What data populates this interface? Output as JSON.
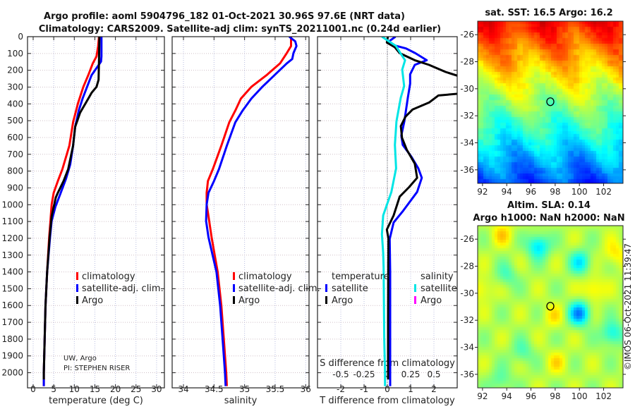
{
  "title_line1": "Argo profile: aoml 5904796_182 01-Oct-2021 30.96S 97.6E (NRT data)",
  "title_line2": "Climatology: CARS2009. Satellite-adj clim: synTS_20211001.nc (0.24d earlier)",
  "credit_line1": "UW, Argo",
  "credit_line2": "PI: STEPHEN RISER",
  "timestamp": "©IMOS 06-Oct-2021 11:39:47",
  "colors": {
    "climatology": "#ff0000",
    "satellite": "#0000ff",
    "argo": "#000000",
    "sal_satellite": "#00e5e5",
    "sal_argo": "#ff00ff"
  },
  "chart_data": [
    {
      "type": "line",
      "title": "",
      "xlabel": "temperature (deg C)",
      "ylabel": "depth",
      "xlim": [
        -1.37,
        31.9
      ],
      "ylim": [
        2090,
        0
      ],
      "xticks": [
        0,
        5,
        10,
        15,
        20,
        25,
        30
      ],
      "yticks": [
        0,
        100,
        200,
        300,
        400,
        500,
        600,
        700,
        800,
        900,
        1000,
        1100,
        1200,
        1300,
        1400,
        1500,
        1600,
        1700,
        1800,
        1900,
        2000
      ],
      "grid": true,
      "legend": {
        "placement": "center-right",
        "entries": [
          "climatology",
          "satellite-adj. clim.",
          "Argo"
        ]
      },
      "series": [
        {
          "name": "climatology",
          "color": "#ff0000",
          "depth": [
            0,
            56,
            117,
            159,
            229,
            299,
            397,
            509,
            649,
            789,
            859,
            929,
            999,
            1097,
            1194,
            1400,
            1600,
            1800,
            2000,
            2080
          ],
          "values": [
            16.0,
            15.8,
            15.4,
            14.5,
            13.4,
            12.2,
            10.9,
            9.7,
            8.8,
            7.1,
            6.0,
            5.0,
            4.5,
            4.2,
            3.9,
            3.4,
            3.0,
            2.8,
            2.6,
            2.6
          ]
        },
        {
          "name": "satellite-adj. clim.",
          "color": "#0000ff",
          "depth": [
            0,
            117,
            148,
            229,
            299,
            369,
            439,
            537,
            649,
            761,
            845,
            929,
            1013,
            1097,
            1194,
            1400,
            1600,
            1800,
            2000,
            2080
          ],
          "values": [
            16.6,
            16.6,
            16.5,
            14.2,
            13.1,
            12.0,
            11.1,
            10.2,
            9.7,
            9.0,
            8.0,
            6.7,
            5.4,
            4.5,
            4.1,
            3.4,
            3.0,
            2.8,
            2.6,
            2.6
          ]
        },
        {
          "name": "Argo",
          "color": "#000000",
          "depth": [
            0,
            145,
            257,
            299,
            334,
            369,
            453,
            537,
            649,
            789,
            859,
            929,
            957,
            1069,
            1194,
            1400,
            1600,
            1800,
            2000,
            2040
          ],
          "values": [
            16.1,
            16.0,
            15.9,
            15.4,
            14.2,
            13.4,
            11.4,
            10.2,
            9.7,
            8.5,
            7.4,
            6.0,
            5.5,
            4.5,
            4.0,
            3.4,
            3.0,
            2.8,
            2.6,
            2.6
          ]
        }
      ]
    },
    {
      "type": "line",
      "xlabel": "salinity",
      "xlim": [
        33.815,
        36.055
      ],
      "ylim": [
        2090,
        0
      ],
      "xticks": [
        34,
        34.5,
        35,
        35.5,
        36
      ],
      "grid": true,
      "legend": {
        "placement": "center-right",
        "entries": [
          "climatology",
          "satellite-adj. clim.",
          "Argo"
        ]
      },
      "series": [
        {
          "name": "climatology",
          "color": "#ff0000",
          "depth": [
            0,
            56,
            98,
            159,
            229,
            299,
            369,
            439,
            509,
            649,
            789,
            859,
            929,
            999,
            1069,
            1194,
            1400,
            1600,
            1800,
            2000,
            2080
          ],
          "values": [
            35.76,
            35.76,
            35.69,
            35.58,
            35.36,
            35.11,
            34.94,
            34.85,
            34.75,
            34.62,
            34.48,
            34.4,
            34.38,
            34.38,
            34.41,
            34.46,
            34.56,
            34.62,
            34.66,
            34.7,
            34.71
          ]
        },
        {
          "name": "satellite-adj. clim.",
          "color": "#0000ff",
          "depth": [
            0,
            28,
            56,
            98,
            133,
            159,
            229,
            299,
            369,
            439,
            509,
            649,
            789,
            859,
            929,
            999,
            1097,
            1194,
            1400,
            1600,
            1800,
            2000,
            2080
          ],
          "values": [
            35.73,
            35.83,
            35.85,
            35.8,
            35.78,
            35.69,
            35.49,
            35.29,
            35.11,
            34.97,
            34.85,
            34.71,
            34.58,
            34.5,
            34.41,
            34.38,
            34.37,
            34.41,
            34.54,
            34.6,
            34.64,
            34.68,
            34.69
          ]
        }
      ]
    },
    {
      "type": "line",
      "xlabel": "T difference from climatology",
      "x2label": "S difference from climatology",
      "xlim": [
        -3,
        3
      ],
      "x2lim": [
        -0.75,
        0.75
      ],
      "ylim": [
        2090,
        0
      ],
      "xticks": [
        -2,
        -1,
        0,
        1,
        2
      ],
      "x2ticks": [
        -0.5,
        -0.25,
        0,
        0.25,
        0.5
      ],
      "x2ticklabels": [
        "-0.5",
        "-0.25",
        "0",
        "0.25",
        "0.5"
      ],
      "grid": true,
      "legend": {
        "placement": "center",
        "temperature_title": "temperature",
        "salinity_title": "salinity",
        "entries": [
          "satellite",
          "Argo"
        ]
      },
      "series": [
        {
          "name": "temperature satellite",
          "axis": "T",
          "color": "#0000ff",
          "depth": [
            0,
            28,
            50,
            70,
            98,
            140,
            168,
            224,
            280,
            364,
            504,
            588,
            644,
            714,
            784,
            840,
            924,
            1036,
            1106,
            1204,
            1400,
            1700,
            2000,
            2080
          ],
          "values": [
            0.35,
            0.07,
            0.25,
            0.8,
            1.2,
            1.69,
            1.18,
            0.98,
            0.98,
            0.88,
            0.73,
            0.6,
            0.66,
            1.03,
            1.33,
            1.48,
            1.28,
            0.68,
            0.27,
            0.1,
            0.12,
            0.12,
            0.12,
            0.12
          ]
        },
        {
          "name": "temperature Argo",
          "axis": "T",
          "color": "#000000",
          "depth": [
            0,
            35,
            63,
            98,
            140,
            168,
            210,
            245,
            336,
            350,
            392,
            434,
            476,
            532,
            602,
            672,
            756,
            840,
            896,
            952,
            1064,
            1148,
            1204,
            1400,
            1700,
            2000,
            2040
          ],
          "values": [
            0.02,
            -0.02,
            0.32,
            0.53,
            1.18,
            1.79,
            2.5,
            3.3,
            3.3,
            2.19,
            1.79,
            1.08,
            0.78,
            0.58,
            0.63,
            0.83,
            1.18,
            1.28,
            0.93,
            0.53,
            0.27,
            -0.02,
            0.05,
            0.04,
            0.03,
            0.03,
            0.03
          ]
        },
        {
          "name": "salinity satellite",
          "axis": "S",
          "color": "#00e5e5",
          "depth": [
            0,
            28,
            56,
            98,
            140,
            196,
            294,
            364,
            504,
            644,
            784,
            924,
            1064,
            1176,
            1288,
            1372,
            1798,
            1996,
            2080
          ],
          "values": [
            -0.058,
            0.018,
            0.094,
            0.14,
            0.19,
            0.16,
            0.18,
            0.144,
            0.098,
            0.081,
            0.094,
            0.043,
            -0.045,
            -0.058,
            -0.045,
            -0.04,
            -0.033,
            -0.025,
            -0.025
          ]
        }
      ]
    },
    {
      "type": "heatmap",
      "title": "sat. SST: 16.5 Argo: 16.2",
      "xlim": [
        91.6,
        103.6
      ],
      "ylim": [
        -37,
        -25
      ],
      "xticks": [
        92,
        94,
        96,
        98,
        100,
        102
      ],
      "yticks": [
        -26,
        -28,
        -30,
        -32,
        -34,
        -36
      ],
      "marker": {
        "lon": 97.6,
        "lat": -30.96
      }
    },
    {
      "type": "heatmap",
      "title": "Altim. SLA: 0.14",
      "subtitle": "Argo h1000: NaN h2000: NaN",
      "xlim": [
        91.6,
        103.6
      ],
      "ylim": [
        -37,
        -25
      ],
      "xticks": [
        92,
        94,
        96,
        98,
        100,
        102
      ],
      "yticks": [
        -26,
        -28,
        -30,
        -32,
        -34,
        -36
      ],
      "marker": {
        "lon": 97.6,
        "lat": -30.96
      }
    }
  ]
}
